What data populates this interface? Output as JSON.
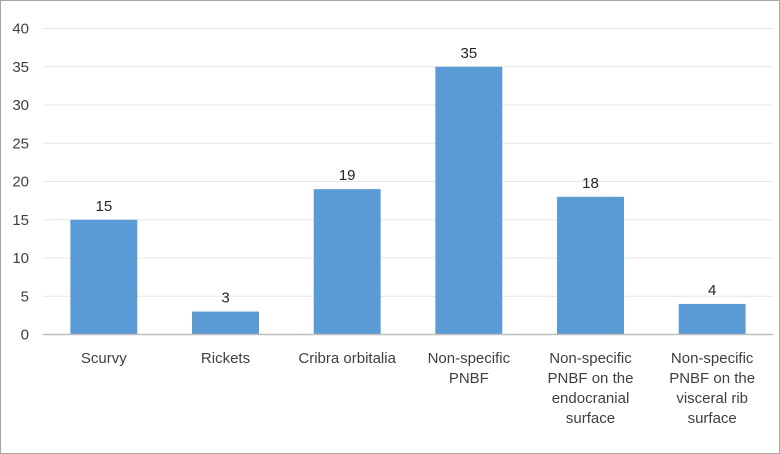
{
  "chart_data": {
    "type": "bar",
    "categories": [
      [
        "Scurvy"
      ],
      [
        "Rickets"
      ],
      [
        "Cribra orbitalia"
      ],
      [
        "Non-specific",
        "PNBF"
      ],
      [
        "Non-specific",
        "PNBF on the",
        "endocranial",
        "surface"
      ],
      [
        "Non-specific",
        "PNBF on the",
        "visceral rib",
        "surface"
      ]
    ],
    "values": [
      15,
      3,
      19,
      35,
      18,
      4
    ],
    "ylim": [
      0,
      40
    ],
    "yticks": [
      0,
      5,
      10,
      15,
      20,
      25,
      30,
      35,
      40
    ],
    "grid": true,
    "data_labels": true,
    "title": "",
    "xlabel": "",
    "ylabel": "",
    "colors": {
      "bar": "#5b9bd5",
      "grid": "#e6e6e6",
      "axis": "#bfbfbf",
      "text": "#404040"
    }
  }
}
